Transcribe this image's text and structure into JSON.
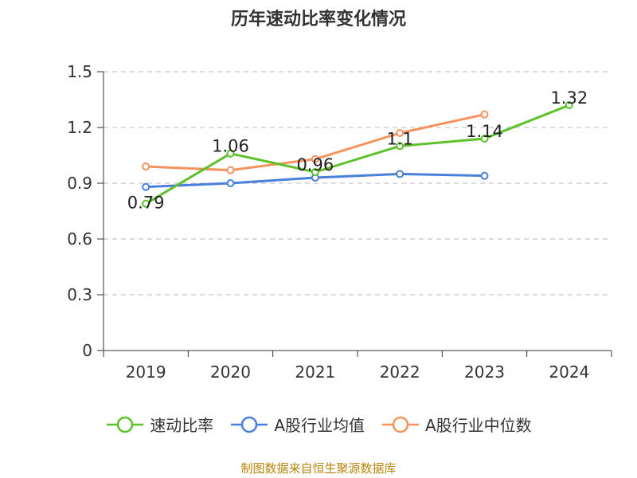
{
  "chart_data": {
    "type": "line",
    "title": "历年速动比率变化情况",
    "categories": [
      "2019",
      "2020",
      "2021",
      "2022",
      "2023",
      "2024"
    ],
    "ylim": [
      0,
      1.5
    ],
    "yticks": [
      "0",
      "0.3",
      "0.6",
      "0.9",
      "1.2",
      "1.5"
    ],
    "ytick_values": [
      0,
      0.3,
      0.6,
      0.9,
      1.2,
      1.5
    ],
    "grid": true,
    "legend_position": "bottom",
    "series": [
      {
        "name": "速动比率",
        "color": "#5cc12a",
        "values": [
          0.79,
          1.06,
          0.96,
          1.1,
          1.14,
          1.32
        ],
        "labels": [
          "0.79",
          "1.06",
          "0.96",
          "1.1",
          "1.14",
          "1.32"
        ]
      },
      {
        "name": "A股行业均值",
        "color": "#4a7fdc",
        "values": [
          0.88,
          0.9,
          0.93,
          0.95,
          0.94,
          null
        ],
        "labels": []
      },
      {
        "name": "A股行业中位数",
        "color": "#f5935e",
        "values": [
          0.99,
          0.97,
          1.03,
          1.17,
          1.27,
          null
        ],
        "labels": []
      }
    ]
  },
  "source_note": "制图数据来自恒生聚源数据库"
}
